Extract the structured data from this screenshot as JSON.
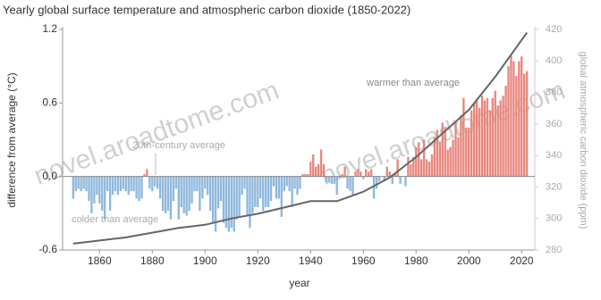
{
  "chart_data": {
    "type": "bar",
    "title": "Yearly global surface temperature and atmospheric carbon dioxide (1850-2022)",
    "y_label": "difference from average (°C)",
    "y2_label": "global atmospheric carbon dioxide (ppm)",
    "x_label": "year",
    "annotations": [
      "warmer than average",
      "20th-century average",
      "colder than average"
    ],
    "watermark": "novel.aroadtome.com",
    "x": [
      1850,
      1851,
      1852,
      1853,
      1854,
      1855,
      1856,
      1857,
      1858,
      1859,
      1860,
      1861,
      1862,
      1863,
      1864,
      1865,
      1866,
      1867,
      1868,
      1869,
      1870,
      1871,
      1872,
      1873,
      1874,
      1875,
      1876,
      1877,
      1878,
      1879,
      1880,
      1881,
      1882,
      1883,
      1884,
      1885,
      1886,
      1887,
      1888,
      1889,
      1890,
      1891,
      1892,
      1893,
      1894,
      1895,
      1896,
      1897,
      1898,
      1899,
      1900,
      1901,
      1902,
      1903,
      1904,
      1905,
      1906,
      1907,
      1908,
      1909,
      1910,
      1911,
      1912,
      1913,
      1914,
      1915,
      1916,
      1917,
      1918,
      1919,
      1920,
      1921,
      1922,
      1923,
      1924,
      1925,
      1926,
      1927,
      1928,
      1929,
      1930,
      1931,
      1932,
      1933,
      1934,
      1935,
      1936,
      1937,
      1938,
      1939,
      1940,
      1941,
      1942,
      1943,
      1944,
      1945,
      1946,
      1947,
      1948,
      1949,
      1950,
      1951,
      1952,
      1953,
      1954,
      1955,
      1956,
      1957,
      1958,
      1959,
      1960,
      1961,
      1962,
      1963,
      1964,
      1965,
      1966,
      1967,
      1968,
      1969,
      1970,
      1971,
      1972,
      1973,
      1974,
      1975,
      1976,
      1977,
      1978,
      1979,
      1980,
      1981,
      1982,
      1983,
      1984,
      1985,
      1986,
      1987,
      1988,
      1989,
      1990,
      1991,
      1992,
      1993,
      1994,
      1995,
      1996,
      1997,
      1998,
      1999,
      2000,
      2001,
      2002,
      2003,
      2004,
      2005,
      2006,
      2007,
      2008,
      2009,
      2010,
      2011,
      2012,
      2013,
      2014,
      2015,
      2016,
      2017,
      2018,
      2019,
      2020,
      2021,
      2022
    ],
    "values": [
      -0.18,
      -0.12,
      -0.1,
      -0.12,
      -0.1,
      -0.12,
      -0.2,
      -0.3,
      -0.22,
      -0.15,
      -0.22,
      -0.28,
      -0.35,
      -0.12,
      -0.28,
      -0.15,
      -0.12,
      -0.15,
      -0.12,
      -0.1,
      -0.12,
      -0.15,
      -0.12,
      -0.12,
      -0.18,
      -0.2,
      -0.18,
      0.02,
      0.06,
      -0.1,
      -0.12,
      -0.08,
      -0.1,
      -0.18,
      -0.28,
      -0.3,
      -0.28,
      -0.35,
      -0.2,
      -0.1,
      -0.35,
      -0.25,
      -0.3,
      -0.32,
      -0.28,
      -0.22,
      -0.12,
      -0.12,
      -0.28,
      -0.18,
      -0.1,
      -0.15,
      -0.28,
      -0.38,
      -0.45,
      -0.26,
      -0.2,
      -0.38,
      -0.42,
      -0.45,
      -0.42,
      -0.45,
      -0.35,
      -0.33,
      -0.15,
      -0.1,
      -0.32,
      -0.42,
      -0.3,
      -0.25,
      -0.25,
      -0.18,
      -0.28,
      -0.25,
      -0.25,
      -0.2,
      -0.08,
      -0.18,
      -0.18,
      -0.33,
      -0.12,
      -0.08,
      -0.12,
      -0.25,
      -0.1,
      -0.15,
      -0.1,
      0.02,
      0.02,
      0.02,
      0.12,
      0.18,
      0.08,
      0.1,
      0.22,
      0.1,
      -0.05,
      -0.05,
      -0.06,
      -0.06,
      -0.15,
      -0.02,
      0.02,
      0.08,
      -0.1,
      -0.12,
      -0.15,
      0.04,
      0.06,
      0.04,
      -0.02,
      0.06,
      0.04,
      0.06,
      -0.18,
      -0.1,
      -0.04,
      0.0,
      -0.04,
      0.08,
      0.04,
      -0.06,
      0.02,
      0.14,
      -0.06,
      0.0,
      -0.08,
      0.16,
      0.1,
      0.16,
      0.24,
      0.28,
      0.14,
      0.3,
      0.14,
      0.12,
      0.18,
      0.32,
      0.38,
      0.28,
      0.44,
      0.4,
      0.22,
      0.24,
      0.3,
      0.44,
      0.32,
      0.5,
      0.64,
      0.4,
      0.4,
      0.54,
      0.6,
      0.62,
      0.56,
      0.66,
      0.62,
      0.64,
      0.54,
      0.64,
      0.7,
      0.58,
      0.62,
      0.66,
      0.74,
      0.9,
      0.99,
      0.94,
      0.82,
      0.94,
      0.98,
      0.84,
      0.86
    ],
    "positive_color": "#e8877f",
    "negative_color": "#8fb8de",
    "co2": {
      "type": "line",
      "axis": "y2",
      "color": "#666666",
      "x": [
        1850,
        1860,
        1870,
        1880,
        1890,
        1900,
        1910,
        1920,
        1930,
        1940,
        1950,
        1960,
        1970,
        1980,
        1990,
        2000,
        2010,
        2022
      ],
      "values": [
        284,
        286,
        288,
        291,
        294,
        296,
        300,
        303,
        307,
        311,
        311,
        317,
        326,
        339,
        354,
        369,
        390,
        418
      ]
    },
    "xlim": [
      1846,
      2025
    ],
    "xticks": [
      1860,
      1880,
      1900,
      1920,
      1940,
      1960,
      1980,
      2000,
      2020
    ],
    "ylim": [
      -0.6,
      1.2
    ],
    "yticks": [
      1.2,
      0.6,
      {
        "value": 0,
        "label": "0.0"
      },
      -0.6
    ],
    "y2lim": [
      280,
      420
    ],
    "y2ticks": [
      420,
      400,
      380,
      360,
      340,
      320,
      300,
      280
    ]
  }
}
